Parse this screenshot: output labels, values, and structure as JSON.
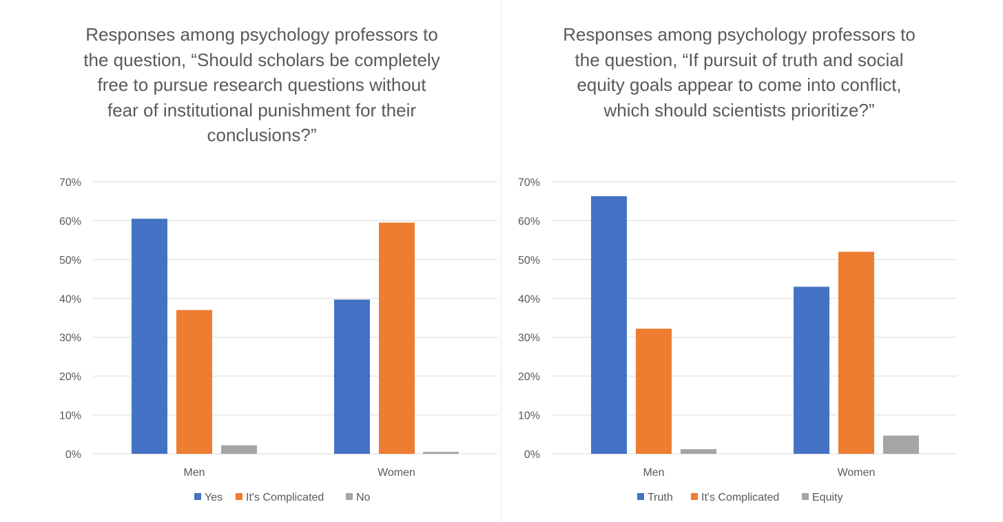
{
  "chart_data": [
    {
      "type": "bar",
      "title": "Responses among psychology professors to the question, “Should scholars be completely free to pursue research questions without fear of institutional punishment for their conclusions?”",
      "categories": [
        "Men",
        "Women"
      ],
      "series": [
        {
          "name": "Yes",
          "color": "#4472c4",
          "values": [
            0.605,
            0.397
          ]
        },
        {
          "name": "It's Complicated",
          "color": "#ed7d31",
          "values": [
            0.37,
            0.595
          ]
        },
        {
          "name": "No",
          "color": "#a5a5a5",
          "values": [
            0.022,
            0.005
          ]
        }
      ],
      "yticks": [
        "0%",
        "10%",
        "20%",
        "30%",
        "40%",
        "50%",
        "60%",
        "70%"
      ],
      "ylim": [
        0,
        0.7
      ],
      "xlabel": "",
      "ylabel": "",
      "legend": "bottom"
    },
    {
      "type": "bar",
      "title": "Responses among psychology professors to the question, “If pursuit of truth and social equity goals appear to come into conflict, which should scientists prioritize?”",
      "categories": [
        "Men",
        "Women"
      ],
      "series": [
        {
          "name": "Truth",
          "color": "#4472c4",
          "values": [
            0.663,
            0.43
          ]
        },
        {
          "name": "It's Complicated",
          "color": "#ed7d31",
          "values": [
            0.322,
            0.52
          ]
        },
        {
          "name": "Equity",
          "color": "#a5a5a5",
          "values": [
            0.012,
            0.047
          ]
        }
      ],
      "yticks": [
        "0%",
        "10%",
        "20%",
        "30%",
        "40%",
        "50%",
        "60%",
        "70%"
      ],
      "ylim": [
        0,
        0.7
      ],
      "xlabel": "",
      "ylabel": "",
      "legend": "bottom"
    }
  ]
}
